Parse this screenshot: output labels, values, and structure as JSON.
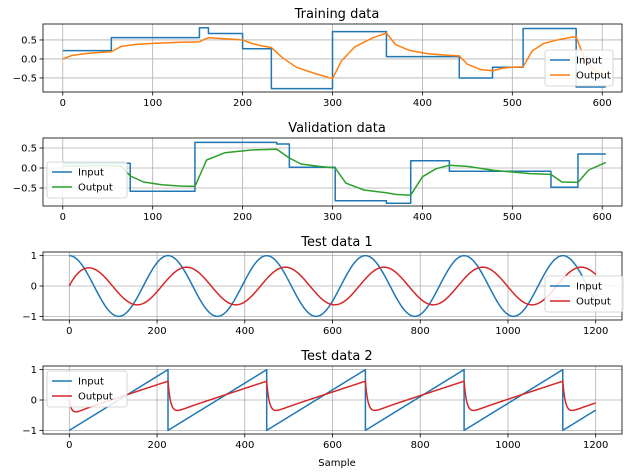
{
  "colors": {
    "input": "#1f77b4",
    "training_output": "#ff7f0e",
    "validation_output": "#2ca02c",
    "test_output": "#d62728",
    "grid": "#b0b0b0"
  },
  "chart_data": [
    {
      "type": "line",
      "title": "Training data",
      "xlabel": "",
      "xlim": [
        -22,
        622
      ],
      "ylim": [
        -0.87,
        0.92
      ],
      "xticks": [
        0,
        100,
        200,
        300,
        400,
        500,
        600
      ],
      "yticks": [
        -0.5,
        0.0,
        0.5
      ],
      "ytick_labels": [
        "−0.5",
        "0.0",
        "0.5"
      ],
      "grid": true,
      "legend": "right",
      "series": [
        {
          "name": "Input",
          "color_key": "input",
          "kind": "step",
          "x": [
            0,
            54,
            152,
            162,
            200,
            232,
            300,
            360,
            441,
            478,
            512,
            571,
            604
          ],
          "y": [
            0.22,
            0.56,
            0.82,
            0.67,
            0.27,
            -0.78,
            0.72,
            0.06,
            -0.5,
            -0.22,
            0.8,
            -0.74,
            -0.74
          ]
        },
        {
          "name": "Output",
          "color_key": "training_output",
          "x": [
            0,
            10,
            25,
            40,
            54,
            65,
            80,
            100,
            130,
            152,
            157,
            162,
            175,
            190,
            200,
            210,
            220,
            232,
            245,
            260,
            280,
            300,
            310,
            325,
            345,
            360,
            370,
            385,
            405,
            425,
            441,
            450,
            465,
            478,
            490,
            500,
            512,
            522,
            535,
            550,
            565,
            571,
            580,
            592,
            604
          ],
          "y": [
            0.0,
            0.09,
            0.14,
            0.17,
            0.19,
            0.33,
            0.38,
            0.41,
            0.44,
            0.45,
            0.51,
            0.56,
            0.54,
            0.52,
            0.5,
            0.41,
            0.35,
            0.3,
            0.02,
            -0.22,
            -0.38,
            -0.52,
            -0.05,
            0.32,
            0.56,
            0.68,
            0.38,
            0.23,
            0.14,
            0.1,
            0.08,
            -0.14,
            -0.28,
            -0.31,
            -0.24,
            -0.22,
            -0.21,
            0.21,
            0.41,
            0.5,
            0.57,
            0.58,
            0.02,
            -0.31,
            -0.42
          ]
        }
      ]
    },
    {
      "type": "line",
      "title": "Validation data",
      "xlabel": "",
      "xlim": [
        -22,
        622
      ],
      "ylim": [
        -0.95,
        0.75
      ],
      "xticks": [
        0,
        100,
        200,
        300,
        400,
        500,
        600
      ],
      "yticks": [
        -0.5,
        0.0,
        0.5
      ],
      "ytick_labels": [
        "−0.5",
        "0.0",
        "0.5"
      ],
      "grid": true,
      "legend": "left",
      "series": [
        {
          "name": "Input",
          "color_key": "input",
          "kind": "step",
          "x": [
            0,
            65,
            75,
            147,
            238,
            252,
            303,
            360,
            387,
            430,
            543,
            573,
            604
          ],
          "y": [
            0.12,
            0.12,
            -0.58,
            0.64,
            0.6,
            0.02,
            -0.82,
            -0.88,
            0.18,
            -0.08,
            -0.48,
            0.35,
            0.35
          ]
        },
        {
          "name": "Output",
          "color_key": "validation_output",
          "x": [
            0,
            30,
            55,
            65,
            75,
            90,
            110,
            130,
            147,
            160,
            180,
            210,
            238,
            252,
            265,
            285,
            303,
            315,
            335,
            360,
            370,
            387,
            400,
            415,
            430,
            450,
            480,
            520,
            543,
            555,
            573,
            585,
            604
          ],
          "y": [
            0.05,
            0.06,
            0.06,
            0.05,
            -0.2,
            -0.35,
            -0.42,
            -0.45,
            -0.46,
            0.2,
            0.38,
            0.45,
            0.47,
            0.25,
            0.1,
            0.04,
            0.0,
            -0.38,
            -0.55,
            -0.62,
            -0.66,
            -0.68,
            -0.22,
            -0.02,
            0.07,
            0.04,
            -0.06,
            -0.14,
            -0.16,
            -0.35,
            -0.36,
            -0.05,
            0.14
          ]
        }
      ]
    },
    {
      "type": "line",
      "title": "Test data 1",
      "xlabel": "",
      "xlim": [
        -60,
        1260
      ],
      "ylim": [
        -1.12,
        1.12
      ],
      "xticks": [
        0,
        200,
        400,
        600,
        800,
        1000,
        1200
      ],
      "yticks": [
        -1,
        0,
        1
      ],
      "ytick_labels": [
        "−1",
        "0",
        "1"
      ],
      "grid": true,
      "legend": "right",
      "series": [
        {
          "name": "Input",
          "color_key": "input",
          "kind": "func",
          "func": "cos",
          "period": 225,
          "amplitude": 1.0,
          "phase": 0,
          "x_range": [
            0,
            1200
          ]
        },
        {
          "name": "Output",
          "color_key": "test_output",
          "kind": "func",
          "func": "cos",
          "period": 225,
          "amplitude": 0.62,
          "phase": -1.18,
          "startup": true,
          "x_range": [
            0,
            1200
          ]
        }
      ]
    },
    {
      "type": "line",
      "title": "Test data 2",
      "xlabel": "Sample",
      "xlim": [
        -60,
        1260
      ],
      "ylim": [
        -1.12,
        1.12
      ],
      "xticks": [
        0,
        200,
        400,
        600,
        800,
        1000,
        1200
      ],
      "yticks": [
        -1,
        0,
        1
      ],
      "ytick_labels": [
        "−1",
        "0",
        "1"
      ],
      "grid": true,
      "legend": "left",
      "series": [
        {
          "name": "Input",
          "color_key": "input",
          "kind": "func",
          "func": "sawtooth",
          "period": 225,
          "x_range": [
            0,
            1200
          ]
        },
        {
          "name": "Output",
          "color_key": "test_output",
          "kind": "func",
          "func": "sawtooth_response",
          "period": 225,
          "x_range": [
            0,
            1200
          ]
        }
      ]
    }
  ]
}
